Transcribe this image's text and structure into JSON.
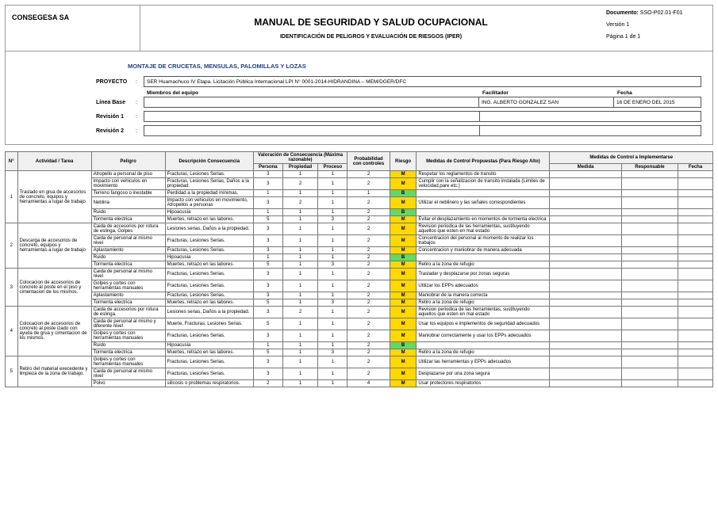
{
  "header": {
    "company": "CONSEGESA SA",
    "title": "MANUAL DE SEGURIDAD Y SALUD OCUPACIONAL",
    "subtitle": "IDENTIFICACIÓN DE PELIGROS Y EVALUACIÓN DE RIESGOS (IPER)",
    "doc_label": "Documento:",
    "doc_code": "SSO-P02.01-F01",
    "version": "Versión 1",
    "page": "Página 1 de 1"
  },
  "section_title": "MONTAJE DE CRUCETAS, MENSULAS, PALOMILLAS Y LOZAS",
  "meta": {
    "proyecto_lbl": "PROYECTO",
    "proyecto_val": "SER Huamachuco IV Etapa. Licitación Pública Internacional LPI N° 0001-2014-HIDRANDINA – MEM/DGER/DFC",
    "miembros_hdr": "Miembros del equipo",
    "facilitador_hdr": "Facilitador",
    "fecha_hdr": "Fecha",
    "lineabase_lbl": "Línea Base",
    "facilitador": "ING. ALBERTO GONZALEZ SAN",
    "fecha": "16 DE ENERO DEL 2015",
    "rev1_lbl": "Revisión 1",
    "rev2_lbl": "Revisión 2"
  },
  "th": {
    "n": "N°",
    "act": "Actividad / Tarea",
    "pel": "Peligro",
    "desc": "Descripción Consecuencia",
    "valc": "Valoración de Consecuencia (Máxima razonable)",
    "per": "Persona",
    "prop": "Propiedad",
    "proc": "Proceso",
    "prob": "Probabilidad con controles",
    "ris": "Riesgo",
    "mcp": "Medidas de Control Propuestas (Para Riesgo Alto)",
    "mci": "Medidas de Control a Implementarse",
    "med": "Medida",
    "resp": "Responsable",
    "fec": "Fecha"
  },
  "groups": [
    {
      "n": "1",
      "act": "Traslado en grua de accesorios de concreto, equipos y herramientas a lugar de trabajo",
      "rows": [
        {
          "pel": "Atropello a personal de piso",
          "desc": "Fracturas, Lesiones Serias.",
          "per": "3",
          "prop": "1",
          "proc": "1",
          "prob": "2",
          "ris": "M",
          "med": "Respetar los reglamentos de transito"
        },
        {
          "pel": "Impacto con vehiculos en movimiento",
          "desc": "Fracturas, Lesiones Serias, Daños a la propiedad.",
          "per": "3",
          "prop": "2",
          "proc": "1",
          "prob": "2",
          "ris": "M",
          "med": "Cumplir con la señalizacion de transito instalada (Limites de velocidad,pare etc.)"
        },
        {
          "pel": "Terreno fangoso o inestable",
          "desc": "Perdidad a la propiedad mínimas.",
          "per": "1",
          "prop": "1",
          "proc": "1",
          "prob": "1",
          "ris": "B",
          "med": ""
        },
        {
          "pel": "Neblina",
          "desc": "Impacto con vehiculos en movimiento, Atropellos a personas",
          "per": "3",
          "prop": "2",
          "proc": "1",
          "prob": "2",
          "ris": "M",
          "med": "Utilizar el neblinero y las señales correspondientes"
        },
        {
          "pel": "Ruido",
          "desc": "Hipoacusia",
          "per": "1",
          "prop": "1",
          "proc": "1",
          "prob": "2",
          "ris": "B",
          "med": ""
        },
        {
          "pel": "Tormenta electrica",
          "desc": "Muertes, retrazo en las labores.",
          "per": "5",
          "prop": "1",
          "proc": "3",
          "prob": "2",
          "ris": "M",
          "med": "Evitar el desplazamiento en momentos de tormenta electrica"
        }
      ]
    },
    {
      "n": "2",
      "act": "Descarga de accesorios de concreto, equipos y herramientas a lugar de trabajo",
      "rows": [
        {
          "pel": "Caida de accesorios por rotura de eslinga, Golpes",
          "desc": "Lesiones serias, Daños a la propiedad.",
          "per": "3",
          "prop": "1",
          "proc": "1",
          "prob": "2",
          "ris": "M",
          "med": "Revision periodica de las herramientas, sustituyendo aquellos que esten en mal estado"
        },
        {
          "pel": "Caida de personal al mismo nivel",
          "desc": "Fracturas, Lesiones Serias.",
          "per": "3",
          "prop": "1",
          "proc": "1",
          "prob": "2",
          "ris": "M",
          "med": "Concentracion del personal al momento de realizar los trabajos"
        },
        {
          "pel": "Aplastamiento",
          "desc": "Fracturas, Lesiones Serias.",
          "per": "3",
          "prop": "1",
          "proc": "1",
          "prob": "2",
          "ris": "M",
          "med": "Concentracion y maniobrar de manera adecuada"
        },
        {
          "pel": "Ruido",
          "desc": "Hipoacusia",
          "per": "1",
          "prop": "1",
          "proc": "1",
          "prob": "2",
          "ris": "B",
          "med": ""
        },
        {
          "pel": "Tormenta electrica",
          "desc": "Muertes, retrazo en las labores.",
          "per": "5",
          "prop": "1",
          "proc": "3",
          "prob": "2",
          "ris": "M",
          "med": "Retiro a la zona de refugio"
        }
      ]
    },
    {
      "n": "3",
      "act": "Colocacion de accesorios de concreto al poste en el piso y cimentacion de los mismos.",
      "rows": [
        {
          "pel": "Caida de personal al mismo nivel",
          "desc": "Fracturas, Lesiones Serias.",
          "per": "3",
          "prop": "1",
          "proc": "1",
          "prob": "2",
          "ris": "M",
          "med": "Trasladar y desplazarse por zonas seguras"
        },
        {
          "pel": "Golpes y cortes con herramientas manuales",
          "desc": "Fracturas, Lesiones Serias.",
          "per": "3",
          "prop": "1",
          "proc": "1",
          "prob": "2",
          "ris": "M",
          "med": "Utilizar los EPPs adecuados"
        },
        {
          "pel": "Aplastamiento",
          "desc": "Fracturas, Lesiones Serias.",
          "per": "3",
          "prop": "1",
          "proc": "1",
          "prob": "2",
          "ris": "M",
          "med": "Maniobrar de la manera correcta"
        },
        {
          "pel": "Tormenta electrica",
          "desc": "Muertes, retrazo en las labores.",
          "per": "5",
          "prop": "1",
          "proc": "3",
          "prob": "2",
          "ris": "M",
          "med": "Retiro a la zona de refugio"
        }
      ]
    },
    {
      "n": "4",
      "act": "Colocacion de accesorios de concreto al poste izado con ayuda de grua y cimentacion de los mismos.",
      "rows": [
        {
          "pel": "Caida de accesorios por rotura de eslinga.",
          "desc": "Lesiones serias, Daños a la propiedad.",
          "per": "3",
          "prop": "2",
          "proc": "1",
          "prob": "2",
          "ris": "M",
          "med": "Revision periodica de las herramientas, sustituyendo aquellos que esten en mal estado"
        },
        {
          "pel": "Caida de personal al mismo y diferente nivel",
          "desc": "Muerte, Fracturas, Lesiones Serias.",
          "per": "5",
          "prop": "1",
          "proc": "1",
          "prob": "2",
          "ris": "M",
          "med": "Usar los equipos e implementos de seguridad adecuados"
        },
        {
          "pel": "Golpes y cortes con herramientas manuales",
          "desc": "Fracturas, Lesiones Serias.",
          "per": "3",
          "prop": "1",
          "proc": "1",
          "prob": "2",
          "ris": "M",
          "med": "Maniobrar correctamente y usar los EPPs  adecuados"
        },
        {
          "pel": "Ruido",
          "desc": "Hipoacusia",
          "per": "1",
          "prop": "1",
          "proc": "1",
          "prob": "2",
          "ris": "B",
          "med": ""
        },
        {
          "pel": "Tormenta electrica",
          "desc": "Muertes, retrazo en las labores.",
          "per": "5",
          "prop": "1",
          "proc": "3",
          "prob": "2",
          "ris": "M",
          "med": "Retiro a la zona de refugio"
        }
      ]
    },
    {
      "n": "5",
      "act": "Retiro del  material execedente y limpieza de la zona de trabajo.",
      "rows": [
        {
          "pel": "Golpes y cortes con herramientas manuales",
          "desc": "Fracturas, Lesiones Serias.",
          "per": "3",
          "prop": "1",
          "proc": "1",
          "prob": "2",
          "ris": "M",
          "med": "Utilizar las herramientas y EPPs adecuados"
        },
        {
          "pel": "Caida de personal al mismo nivel",
          "desc": "Fracturas, Lesiones Serias.",
          "per": "3",
          "prop": "1",
          "proc": "1",
          "prob": "2",
          "ris": "M",
          "med": "Desplazarse por una zona segura"
        },
        {
          "pel": "Polvo",
          "desc": "silicosis o problemas respiratorios.",
          "per": "2",
          "prop": "1",
          "proc": "1",
          "prob": "4",
          "ris": "M",
          "med": "Usar protectores respiratorios"
        }
      ]
    }
  ]
}
